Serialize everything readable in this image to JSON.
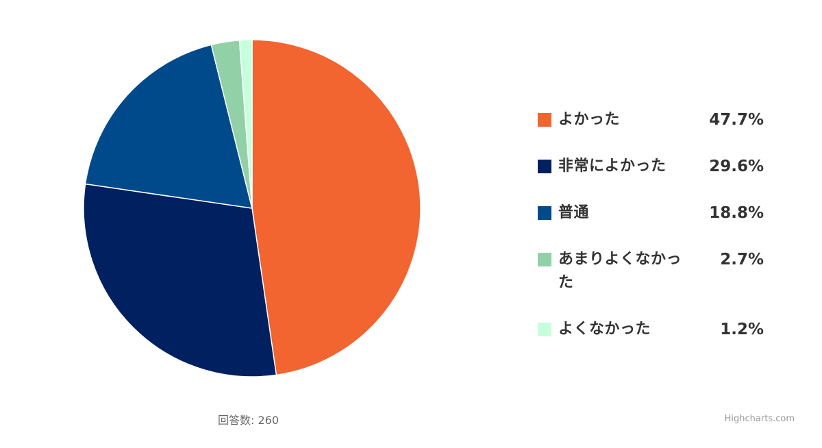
{
  "chart_data": {
    "type": "pie",
    "slices": [
      {
        "label": "よかった",
        "value": 47.7,
        "value_label": "47.7%",
        "color": "#f26430"
      },
      {
        "label": "非常によかった",
        "value": 29.6,
        "value_label": "29.6%",
        "color": "#002060"
      },
      {
        "label": "普通",
        "value": 18.8,
        "value_label": "18.8%",
        "color": "#004a8c"
      },
      {
        "label": "あまりよくなかった",
        "value": 2.7,
        "value_label": "2.7%",
        "color": "#92d1a7"
      },
      {
        "label": "よくなかった",
        "value": 1.2,
        "value_label": "1.2%",
        "color": "#c6ffdb"
      }
    ],
    "legend_position": "right",
    "caption": "回答数: 260",
    "credit": "Highcharts.com"
  }
}
